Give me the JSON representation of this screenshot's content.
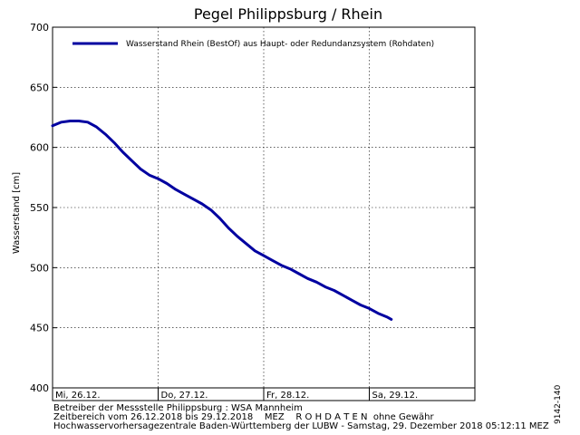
{
  "chart_data": {
    "type": "line",
    "title": "Pegel Philippsburg / Rhein",
    "ylabel": "Wasserstand [cm]",
    "xlabel": "",
    "ylim": [
      400,
      700
    ],
    "yticks": [
      400,
      450,
      500,
      550,
      600,
      650,
      700
    ],
    "xlim": [
      "2018-12-26 00:00",
      "2018-12-30 00:00"
    ],
    "xticks": [
      {
        "label": "Mi, 26.12.",
        "x": "2018-12-26 00:00"
      },
      {
        "label": "Do, 27.12.",
        "x": "2018-12-27 00:00"
      },
      {
        "label": "Fr, 28.12.",
        "x": "2018-12-28 00:00"
      },
      {
        "label": "Sa, 29.12.",
        "x": "2018-12-29 00:00"
      }
    ],
    "grid": true,
    "legend_position": "top",
    "series": [
      {
        "name": "Wasserstand Rhein (BestOf)  aus Haupt- oder Redundanzsystem (Rohdaten)",
        "color": "#0000a0",
        "points": [
          [
            "2018-12-26 00:00",
            618
          ],
          [
            "2018-12-26 02:00",
            621
          ],
          [
            "2018-12-26 04:00",
            622
          ],
          [
            "2018-12-26 06:00",
            622
          ],
          [
            "2018-12-26 08:00",
            621
          ],
          [
            "2018-12-26 10:00",
            617
          ],
          [
            "2018-12-26 12:00",
            611
          ],
          [
            "2018-12-26 14:00",
            604
          ],
          [
            "2018-12-26 16:00",
            596
          ],
          [
            "2018-12-26 18:00",
            589
          ],
          [
            "2018-12-26 20:00",
            582
          ],
          [
            "2018-12-26 22:00",
            577
          ],
          [
            "2018-12-27 00:00",
            574
          ],
          [
            "2018-12-27 02:00",
            570
          ],
          [
            "2018-12-27 04:00",
            565
          ],
          [
            "2018-12-27 06:00",
            561
          ],
          [
            "2018-12-27 08:00",
            557
          ],
          [
            "2018-12-27 10:00",
            553
          ],
          [
            "2018-12-27 12:00",
            548
          ],
          [
            "2018-12-27 14:00",
            541
          ],
          [
            "2018-12-27 16:00",
            533
          ],
          [
            "2018-12-27 18:00",
            526
          ],
          [
            "2018-12-27 20:00",
            520
          ],
          [
            "2018-12-27 22:00",
            514
          ],
          [
            "2018-12-28 00:00",
            510
          ],
          [
            "2018-12-28 02:00",
            506
          ],
          [
            "2018-12-28 04:00",
            502
          ],
          [
            "2018-12-28 06:00",
            499
          ],
          [
            "2018-12-28 08:00",
            495
          ],
          [
            "2018-12-28 10:00",
            491
          ],
          [
            "2018-12-28 12:00",
            488
          ],
          [
            "2018-12-28 14:00",
            484
          ],
          [
            "2018-12-28 16:00",
            481
          ],
          [
            "2018-12-28 18:00",
            477
          ],
          [
            "2018-12-28 20:00",
            473
          ],
          [
            "2018-12-28 22:00",
            469
          ],
          [
            "2018-12-29 00:00",
            466
          ],
          [
            "2018-12-29 02:00",
            462
          ],
          [
            "2018-12-29 04:00",
            459
          ],
          [
            "2018-12-29 05:00",
            457
          ]
        ]
      }
    ]
  },
  "footer": {
    "line1": "Betreiber der Messstelle Philippsburg : WSA Mannheim",
    "line2": "Zeitbereich vom 26.12.2018 bis 29.12.2018    MEZ    R O H D A T E N  ohne Gewähr",
    "line3": "Hochwasservorhersagezentrale Baden-Württemberg der LUBW - Samstag, 29. Dezember 2018 05:12:11 MEZ"
  },
  "image_code": "9142-140"
}
